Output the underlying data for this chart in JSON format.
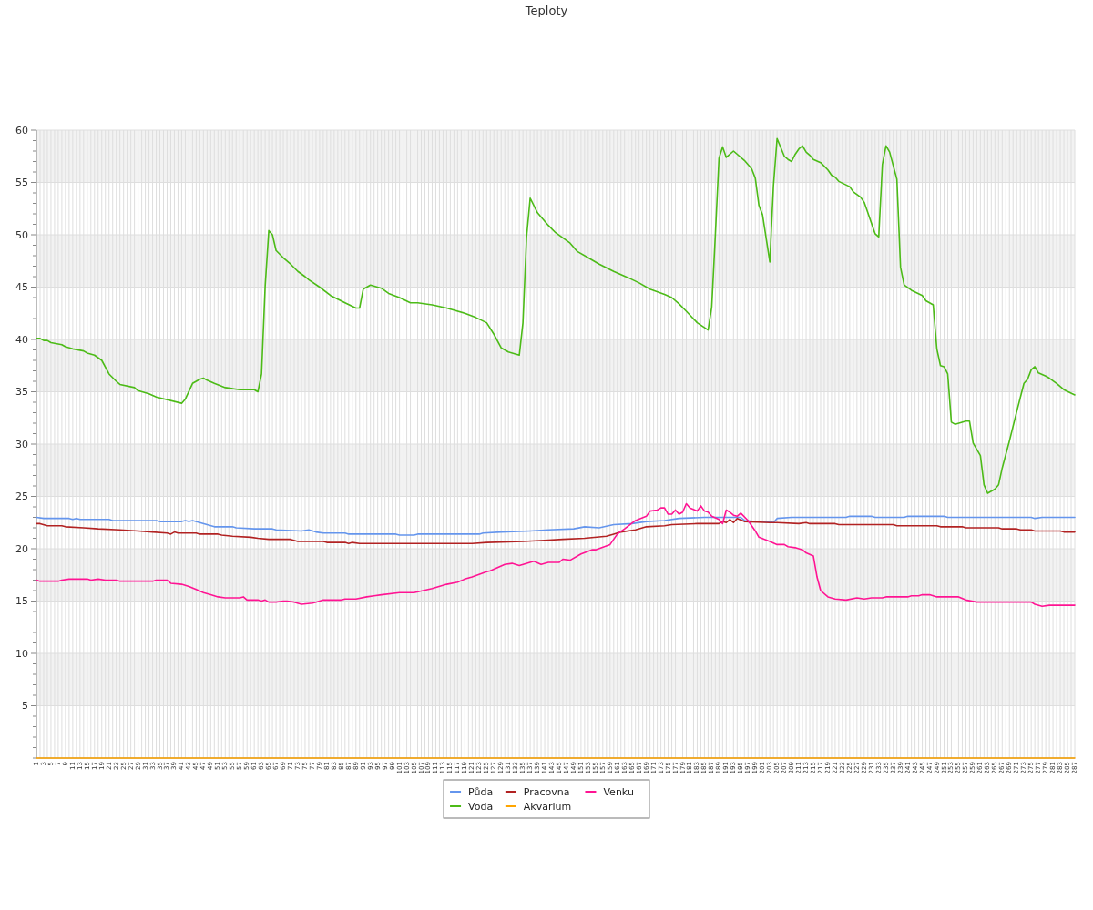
{
  "chart_data": {
    "type": "line",
    "title": "Teploty",
    "xlim": [
      1,
      287
    ],
    "xticks": [
      1,
      {
        "value": 2,
        "label": null
      },
      3,
      {
        "value": 4,
        "label": null
      },
      5,
      {
        "value": 6,
        "label": null
      },
      7,
      {
        "value": 8,
        "label": null
      },
      9,
      {
        "value": 10,
        "label": null
      },
      11,
      {
        "value": 12,
        "label": null
      },
      13,
      {
        "value": 14,
        "label": null
      },
      15,
      {
        "value": 16,
        "label": null
      },
      17,
      {
        "value": 18,
        "label": null
      },
      19,
      {
        "value": 20,
        "label": null
      },
      21,
      {
        "value": 22,
        "label": null
      },
      23,
      {
        "value": 24,
        "label": null
      },
      25,
      {
        "value": 26,
        "label": null
      },
      27,
      {
        "value": 28,
        "label": null
      },
      29,
      {
        "value": 30,
        "label": null
      },
      31,
      {
        "value": 32,
        "label": null
      },
      33,
      {
        "value": 34,
        "label": null
      },
      35,
      {
        "value": 36,
        "label": null
      },
      37,
      {
        "value": 38,
        "label": null
      },
      39,
      {
        "value": 40,
        "label": null
      },
      41,
      {
        "value": 42,
        "label": null
      },
      43,
      {
        "value": 44,
        "label": null
      },
      45,
      {
        "value": 46,
        "label": null
      },
      47,
      {
        "value": 48,
        "label": null
      },
      49,
      {
        "value": 50,
        "label": null
      },
      51,
      {
        "value": 52,
        "label": null
      },
      53,
      {
        "value": 54,
        "label": null
      },
      55,
      {
        "value": 56,
        "label": null
      },
      57,
      {
        "value": 58,
        "label": null
      },
      59,
      {
        "value": 60,
        "label": null
      },
      61,
      {
        "value": 62,
        "label": null
      },
      63,
      {
        "value": 64,
        "label": null
      },
      65,
      {
        "value": 66,
        "label": null
      },
      67,
      {
        "value": 68,
        "label": null
      },
      69,
      {
        "value": 70,
        "label": null
      },
      71,
      {
        "value": 72,
        "label": null
      },
      73,
      {
        "value": 74,
        "label": null
      },
      75,
      {
        "value": 76,
        "label": null
      },
      77,
      {
        "value": 78,
        "label": null
      },
      79,
      {
        "value": 80,
        "label": null
      },
      81,
      {
        "value": 82,
        "label": null
      },
      83,
      {
        "value": 84,
        "label": null
      },
      85,
      {
        "value": 86,
        "label": null
      },
      87,
      {
        "value": 88,
        "label": null
      },
      89,
      {
        "value": 90,
        "label": null
      },
      91,
      {
        "value": 92,
        "label": null
      },
      93,
      {
        "value": 94,
        "label": null
      },
      95,
      {
        "value": 96,
        "label": null
      },
      97,
      {
        "value": 98,
        "label": null
      },
      99,
      {
        "value": 100,
        "label": null
      },
      101,
      {
        "value": 102,
        "label": null
      },
      103,
      {
        "value": 104,
        "label": null
      },
      105,
      {
        "value": 106,
        "label": null
      },
      107,
      {
        "value": 108,
        "label": null
      },
      109,
      {
        "value": 110,
        "label": null
      },
      111,
      {
        "value": 112,
        "label": null
      },
      113,
      {
        "value": 114,
        "label": null
      },
      115,
      {
        "value": 116,
        "label": null
      },
      117,
      {
        "value": 118,
        "label": null
      },
      119,
      {
        "value": 120,
        "label": null
      },
      121,
      {
        "value": 122,
        "label": null
      },
      123,
      {
        "value": 124,
        "label": null
      },
      125,
      {
        "value": 126,
        "label": null
      },
      127,
      {
        "value": 128,
        "label": null
      },
      129,
      {
        "value": 130,
        "label": null
      },
      131,
      {
        "value": 132,
        "label": null
      },
      133,
      {
        "value": 134,
        "label": null
      },
      135,
      {
        "value": 136,
        "label": null
      },
      137,
      {
        "value": 138,
        "label": null
      },
      139,
      {
        "value": 140,
        "label": null
      },
      141,
      {
        "value": 142,
        "label": null
      },
      143,
      {
        "value": 144,
        "label": null
      },
      145,
      {
        "value": 146,
        "label": null
      },
      147,
      {
        "value": 148,
        "label": null
      },
      149,
      {
        "value": 150,
        "label": null
      },
      151,
      {
        "value": 152,
        "label": null
      },
      153,
      {
        "value": 154,
        "label": null
      },
      155,
      {
        "value": 156,
        "label": null
      },
      157,
      {
        "value": 158,
        "label": null
      },
      159,
      {
        "value": 160,
        "label": null
      },
      161,
      {
        "value": 162,
        "label": null
      },
      163,
      {
        "value": 164,
        "label": null
      },
      165,
      {
        "value": 166,
        "label": null
      },
      167,
      {
        "value": 168,
        "label": null
      },
      169,
      {
        "value": 170,
        "label": null
      },
      171,
      {
        "value": 172,
        "label": null
      },
      173,
      {
        "value": 174,
        "label": null
      },
      175,
      {
        "value": 176,
        "label": null
      },
      177,
      {
        "value": 178,
        "label": null
      },
      179,
      {
        "value": 180,
        "label": null
      },
      181,
      {
        "value": 182,
        "label": null
      },
      183,
      {
        "value": 184,
        "label": null
      },
      185,
      {
        "value": 186,
        "label": null
      },
      187,
      {
        "value": 188,
        "label": null
      },
      189,
      {
        "value": 190,
        "label": null
      },
      191,
      {
        "value": 192,
        "label": null
      },
      193,
      {
        "value": 194,
        "label": null
      },
      195,
      {
        "value": 196,
        "label": null
      },
      197,
      {
        "value": 198,
        "label": null
      },
      199,
      {
        "value": 200,
        "label": null
      },
      201,
      {
        "value": 202,
        "label": null
      },
      203,
      {
        "value": 204,
        "label": null
      },
      205,
      {
        "value": 206,
        "label": null
      },
      207,
      {
        "value": 208,
        "label": null
      },
      209,
      {
        "value": 210,
        "label": null
      },
      211,
      {
        "value": 212,
        "label": null
      },
      213,
      {
        "value": 214,
        "label": null
      },
      215,
      {
        "value": 216,
        "label": null
      },
      217,
      {
        "value": 218,
        "label": null
      },
      219,
      {
        "value": 220,
        "label": null
      },
      221,
      {
        "value": 222,
        "label": null
      },
      223,
      {
        "value": 224,
        "label": null
      },
      225,
      {
        "value": 226,
        "label": null
      },
      227,
      {
        "value": 228,
        "label": null
      },
      229,
      {
        "value": 230,
        "label": null
      },
      231,
      {
        "value": 232,
        "label": null
      },
      233,
      {
        "value": 234,
        "label": null
      },
      235,
      {
        "value": 236,
        "label": null
      },
      237,
      {
        "value": 238,
        "label": null
      },
      239,
      {
        "value": 240,
        "label": null
      },
      241,
      {
        "value": 242,
        "label": null
      },
      243,
      {
        "value": 244,
        "label": null
      },
      245,
      {
        "value": 246,
        "label": null
      },
      247,
      {
        "value": 248,
        "label": null
      },
      249,
      {
        "value": 250,
        "label": null
      },
      251,
      {
        "value": 252,
        "label": null
      },
      253,
      {
        "value": 254,
        "label": null
      },
      255,
      {
        "value": 256,
        "label": null
      },
      257,
      {
        "value": 258,
        "label": null
      },
      259,
      {
        "value": 260,
        "label": null
      },
      261,
      {
        "value": 262,
        "label": null
      },
      263,
      {
        "value": 264,
        "label": null
      },
      265,
      {
        "value": 266,
        "label": null
      },
      267,
      {
        "value": 268,
        "label": null
      },
      269,
      {
        "value": 270,
        "label": null
      },
      271,
      {
        "value": 272,
        "label": null
      },
      273,
      {
        "value": 274,
        "label": null
      },
      275,
      {
        "value": 276,
        "label": null
      },
      277,
      {
        "value": 278,
        "label": null
      },
      279,
      {
        "value": 280,
        "label": null
      },
      281,
      {
        "value": 282,
        "label": null
      },
      283,
      {
        "value": 284,
        "label": null
      },
      285,
      {
        "value": 286,
        "label": null
      },
      287
    ],
    "ylim": [
      0,
      60
    ],
    "yticks": [
      {
        "value": 0,
        "label": null
      },
      {
        "value": 1,
        "label": null
      },
      {
        "value": 2,
        "label": null
      },
      {
        "value": 3,
        "label": null
      },
      {
        "value": 4,
        "label": null
      },
      5,
      {
        "value": 6,
        "label": null
      },
      {
        "value": 7,
        "label": null
      },
      {
        "value": 8,
        "label": null
      },
      {
        "value": 9,
        "label": null
      },
      10,
      {
        "value": 11,
        "label": null
      },
      {
        "value": 12,
        "label": null
      },
      {
        "value": 13,
        "label": null
      },
      {
        "value": 14,
        "label": null
      },
      15,
      {
        "value": 16,
        "label": null
      },
      {
        "value": 17,
        "label": null
      },
      {
        "value": 18,
        "label": null
      },
      {
        "value": 19,
        "label": null
      },
      20,
      {
        "value": 21,
        "label": null
      },
      {
        "value": 22,
        "label": null
      },
      {
        "value": 23,
        "label": null
      },
      {
        "value": 24,
        "label": null
      },
      25,
      {
        "value": 26,
        "label": null
      },
      {
        "value": 27,
        "label": null
      },
      {
        "value": 28,
        "label": null
      },
      {
        "value": 29,
        "label": null
      },
      30,
      {
        "value": 31,
        "label": null
      },
      {
        "value": 32,
        "label": null
      },
      {
        "value": 33,
        "label": null
      },
      {
        "value": 34,
        "label": null
      },
      35,
      {
        "value": 36,
        "label": null
      },
      {
        "value": 37,
        "label": null
      },
      {
        "value": 38,
        "label": null
      },
      {
        "value": 39,
        "label": null
      },
      40,
      {
        "value": 41,
        "label": null
      },
      {
        "value": 42,
        "label": null
      },
      {
        "value": 43,
        "label": null
      },
      {
        "value": 44,
        "label": null
      },
      45,
      {
        "value": 46,
        "label": null
      },
      {
        "value": 47,
        "label": null
      },
      {
        "value": 48,
        "label": null
      },
      {
        "value": 49,
        "label": null
      },
      50,
      {
        "value": 51,
        "label": null
      },
      {
        "value": 52,
        "label": null
      },
      {
        "value": 53,
        "label": null
      },
      {
        "value": 54,
        "label": null
      },
      55,
      {
        "value": 56,
        "label": null
      },
      {
        "value": 57,
        "label": null
      },
      {
        "value": 58,
        "label": null
      },
      {
        "value": 59,
        "label": null
      },
      60
    ],
    "grid": true,
    "legend": "bottom",
    "bands": [
      {
        "axis": "y",
        "from": 5,
        "to": 10,
        "color": "#f2f2f2"
      },
      {
        "axis": "y",
        "from": 15,
        "to": 20,
        "color": "#f2f2f2"
      },
      {
        "axis": "y",
        "from": 25,
        "to": 30,
        "color": "#f2f2f2"
      },
      {
        "axis": "y",
        "from": 35,
        "to": 40,
        "color": "#f2f2f2"
      },
      {
        "axis": "y",
        "from": 45,
        "to": 50,
        "color": "#f2f2f2"
      },
      {
        "axis": "y",
        "from": 55,
        "to": 60,
        "color": "#f2f2f2"
      }
    ],
    "series": [
      {
        "name": "Půda",
        "color": "#6495ed",
        "x": [
          1,
          3,
          10,
          11,
          12,
          13,
          21,
          22,
          34,
          35,
          41,
          42,
          43,
          44,
          48,
          50,
          55,
          56,
          61,
          66,
          67,
          74,
          76,
          78,
          80,
          86,
          87,
          95,
          100,
          101,
          105,
          106,
          123,
          124,
          129,
          137,
          142,
          149,
          152,
          156,
          160,
          165,
          169,
          174,
          178,
          185,
          195,
          196,
          199,
          203,
          204,
          205,
          209,
          224,
          225,
          231,
          232,
          240,
          241,
          251,
          252,
          275,
          276,
          278,
          287
        ],
        "values": [
          23.0,
          22.9,
          22.9,
          22.8,
          22.9,
          22.8,
          22.8,
          22.7,
          22.7,
          22.6,
          22.6,
          22.7,
          22.6,
          22.7,
          22.3,
          22.1,
          22.1,
          22.0,
          21.9,
          21.9,
          21.8,
          21.7,
          21.8,
          21.6,
          21.5,
          21.5,
          21.4,
          21.4,
          21.4,
          21.3,
          21.3,
          21.4,
          21.4,
          21.5,
          21.6,
          21.7,
          21.8,
          21.9,
          22.1,
          22.0,
          22.3,
          22.4,
          22.6,
          22.7,
          22.9,
          23.0,
          23.0,
          22.7,
          22.6,
          22.6,
          22.5,
          22.9,
          23.0,
          23.0,
          23.1,
          23.1,
          23.0,
          23.0,
          23.1,
          23.1,
          23.0,
          23.0,
          22.9,
          23.0,
          23.0
        ]
      },
      {
        "name": "Pracovna",
        "color": "#b22222",
        "x": [
          1,
          2,
          4,
          8,
          9,
          14,
          18,
          24,
          29,
          33,
          37,
          38,
          39,
          40,
          45,
          46,
          51,
          52,
          55,
          60,
          62,
          65,
          71,
          73,
          80,
          81,
          86,
          87,
          88,
          90,
          98,
          121,
          125,
          135,
          141,
          146,
          152,
          158,
          160,
          162,
          166,
          169,
          174,
          176,
          183,
          189,
          190,
          191,
          192,
          193,
          194,
          196,
          203,
          205,
          211,
          213,
          214,
          221,
          222,
          237,
          238,
          249,
          250,
          256,
          257,
          266,
          267,
          271,
          272,
          275,
          276,
          283,
          284,
          287
        ],
        "values": [
          22.4,
          22.4,
          22.2,
          22.2,
          22.1,
          22.0,
          21.9,
          21.8,
          21.7,
          21.6,
          21.5,
          21.4,
          21.6,
          21.5,
          21.5,
          21.4,
          21.4,
          21.3,
          21.2,
          21.1,
          21.0,
          20.9,
          20.9,
          20.7,
          20.7,
          20.6,
          20.6,
          20.5,
          20.6,
          20.5,
          20.5,
          20.5,
          20.6,
          20.7,
          20.8,
          20.9,
          21.0,
          21.2,
          21.4,
          21.6,
          21.8,
          22.1,
          22.2,
          22.3,
          22.4,
          22.4,
          22.6,
          22.5,
          22.8,
          22.5,
          22.9,
          22.6,
          22.5,
          22.5,
          22.4,
          22.5,
          22.4,
          22.4,
          22.3,
          22.3,
          22.2,
          22.2,
          22.1,
          22.1,
          22.0,
          22.0,
          21.9,
          21.9,
          21.8,
          21.8,
          21.7,
          21.7,
          21.6,
          21.6
        ]
      },
      {
        "name": "Venku",
        "color": "#ff1493",
        "x": [
          1,
          2,
          7,
          8,
          10,
          15,
          16,
          18,
          20,
          23,
          24,
          33,
          34,
          37,
          38,
          41,
          43,
          45,
          47,
          49,
          51,
          53,
          57,
          58,
          59,
          62,
          63,
          64,
          65,
          67,
          69,
          70,
          72,
          74,
          77,
          78,
          80,
          85,
          86,
          89,
          92,
          94,
          96,
          101,
          105,
          110,
          114,
          117,
          119,
          121,
          125,
          126,
          128,
          130,
          132,
          134,
          138,
          140,
          142,
          145,
          146,
          148,
          151,
          154,
          155,
          159,
          161,
          163,
          166,
          169,
          170,
          172,
          173,
          174,
          175,
          176,
          177,
          178,
          179,
          180,
          181,
          183,
          184,
          185,
          186,
          187,
          189,
          190,
          191,
          192,
          193,
          194,
          195,
          197,
          199,
          200,
          203,
          205,
          207,
          208,
          210,
          212,
          213,
          215,
          216,
          217,
          219,
          221,
          224,
          227,
          229,
          231,
          234,
          235,
          241,
          242,
          244,
          245,
          247,
          249,
          255,
          257,
          260,
          275,
          276,
          278,
          280,
          287
        ],
        "values": [
          17.0,
          16.9,
          16.9,
          17.0,
          17.1,
          17.1,
          17.0,
          17.1,
          17.0,
          17.0,
          16.9,
          16.9,
          17.0,
          17.0,
          16.7,
          16.6,
          16.4,
          16.1,
          15.8,
          15.6,
          15.4,
          15.3,
          15.3,
          15.4,
          15.1,
          15.1,
          15.0,
          15.1,
          14.9,
          14.9,
          15.0,
          15.0,
          14.9,
          14.7,
          14.8,
          14.9,
          15.1,
          15.1,
          15.2,
          15.2,
          15.4,
          15.5,
          15.6,
          15.8,
          15.8,
          16.2,
          16.6,
          16.8,
          17.1,
          17.3,
          17.8,
          17.9,
          18.2,
          18.5,
          18.6,
          18.4,
          18.8,
          18.5,
          18.7,
          18.7,
          19.0,
          18.9,
          19.5,
          19.9,
          19.9,
          20.4,
          21.4,
          21.9,
          22.7,
          23.1,
          23.6,
          23.7,
          23.9,
          23.9,
          23.3,
          23.3,
          23.7,
          23.3,
          23.5,
          24.3,
          23.9,
          23.6,
          24.1,
          23.6,
          23.5,
          23.1,
          22.8,
          22.4,
          23.7,
          23.5,
          23.2,
          23.1,
          23.4,
          22.7,
          21.7,
          21.1,
          20.7,
          20.4,
          20.4,
          20.2,
          20.1,
          19.9,
          19.6,
          19.3,
          17.3,
          16.0,
          15.4,
          15.2,
          15.1,
          15.3,
          15.2,
          15.3,
          15.3,
          15.4,
          15.4,
          15.5,
          15.5,
          15.6,
          15.6,
          15.4,
          15.4,
          15.1,
          14.9,
          14.9,
          14.7,
          14.5,
          14.6,
          14.6
        ]
      },
      {
        "name": "Voda",
        "color": "#4cbb17",
        "x": [
          1,
          2,
          3,
          4,
          5,
          8,
          9,
          11,
          14,
          15,
          17,
          19,
          21,
          23,
          24,
          28,
          29,
          32,
          34,
          41,
          42,
          44,
          46,
          47,
          48,
          50,
          53,
          57,
          61,
          62,
          63,
          64,
          65,
          66,
          67,
          69,
          71,
          73,
          75,
          76,
          79,
          82,
          86,
          89,
          90,
          91,
          93,
          96,
          98,
          101,
          104,
          106,
          110,
          114,
          119,
          122,
          125,
          127,
          129,
          131,
          134,
          135,
          136,
          137,
          139,
          142,
          144,
          148,
          150,
          153,
          156,
          160,
          164,
          167,
          170,
          174,
          176,
          178,
          180,
          183,
          186,
          187,
          188,
          189,
          190,
          191,
          193,
          196,
          198,
          199,
          200,
          201,
          203,
          204,
          205,
          207,
          208,
          209,
          210,
          211,
          212,
          213,
          214,
          215,
          217,
          219,
          220,
          221,
          222,
          225,
          226,
          228,
          229,
          230,
          232,
          233,
          234,
          235,
          236,
          238,
          239,
          240,
          242,
          245,
          246,
          248,
          249,
          250,
          251,
          252,
          253,
          254,
          257,
          258,
          259,
          261,
          262,
          263,
          265,
          266,
          267,
          269,
          271,
          273,
          274,
          275,
          276,
          277,
          279,
          280,
          282,
          284,
          287
        ],
        "values": [
          40.1,
          40.1,
          39.9,
          39.9,
          39.7,
          39.5,
          39.3,
          39.1,
          38.9,
          38.7,
          38.5,
          38.0,
          36.7,
          36.0,
          35.7,
          35.4,
          35.1,
          34.8,
          34.5,
          33.9,
          34.3,
          35.8,
          36.2,
          36.3,
          36.1,
          35.8,
          35.4,
          35.2,
          35.2,
          35.0,
          36.7,
          45.1,
          50.4,
          50.0,
          48.5,
          47.8,
          47.2,
          46.5,
          46.0,
          45.7,
          45.0,
          44.2,
          43.5,
          43.0,
          43.0,
          44.8,
          45.2,
          44.9,
          44.4,
          44.0,
          43.5,
          43.5,
          43.3,
          43.0,
          42.5,
          42.1,
          41.6,
          40.5,
          39.2,
          38.8,
          38.5,
          41.6,
          49.8,
          53.5,
          52.1,
          50.9,
          50.2,
          49.2,
          48.4,
          47.8,
          47.2,
          46.5,
          45.9,
          45.4,
          44.8,
          44.3,
          44.0,
          43.4,
          42.7,
          41.6,
          40.9,
          43.1,
          50.0,
          57.3,
          58.4,
          57.4,
          58.0,
          57.1,
          56.3,
          55.4,
          52.8,
          51.9,
          47.4,
          54.7,
          59.2,
          57.5,
          57.2,
          57.0,
          57.7,
          58.2,
          58.5,
          57.9,
          57.6,
          57.2,
          56.9,
          56.2,
          55.7,
          55.5,
          55.1,
          54.6,
          54.1,
          53.6,
          53.1,
          52.1,
          50.1,
          49.8,
          56.7,
          58.5,
          57.9,
          55.3,
          46.9,
          45.2,
          44.7,
          44.2,
          43.7,
          43.3,
          39.1,
          37.5,
          37.4,
          36.7,
          32.1,
          31.9,
          32.2,
          32.2,
          30.1,
          28.9,
          26.1,
          25.3,
          25.7,
          26.1,
          27.7,
          30.3,
          33.1,
          35.8,
          36.2,
          37.1,
          37.4,
          36.8,
          36.5,
          36.3,
          35.8,
          35.2,
          34.7
        ]
      },
      {
        "name": "Akvarium",
        "color": "#ffa500",
        "x": [
          1,
          287
        ],
        "values": [
          0,
          0
        ]
      }
    ]
  }
}
